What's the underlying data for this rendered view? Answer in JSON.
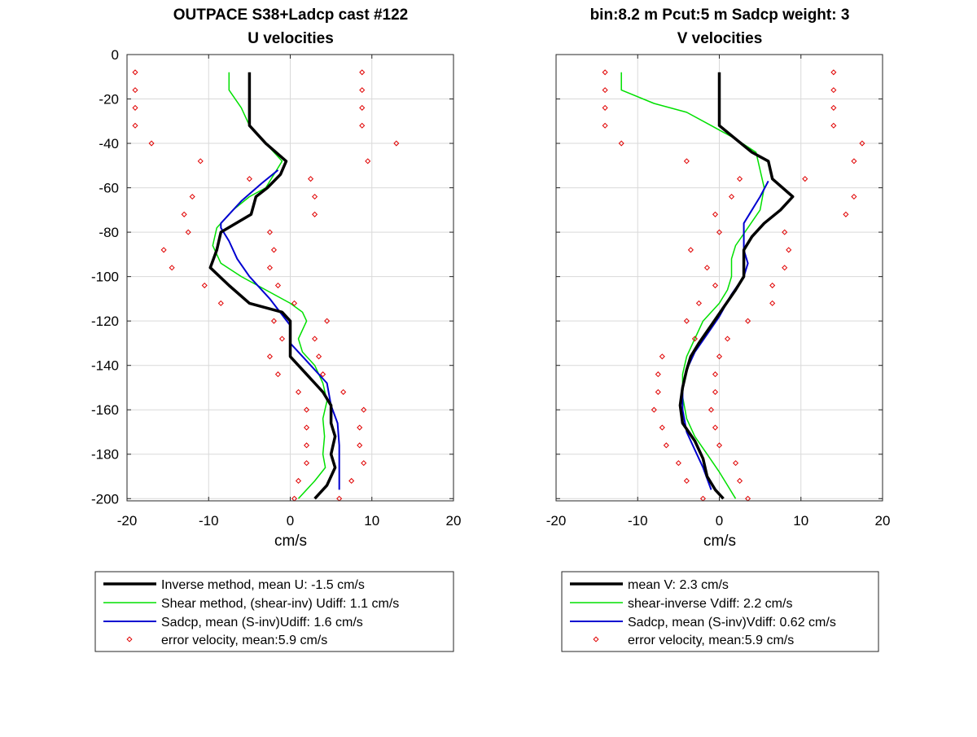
{
  "colors": {
    "inverse": "#000000",
    "shear": "#00e000",
    "sadcp": "#0000d0",
    "error": "#e00000",
    "grid": "#d9d9d9"
  },
  "chart_data": [
    {
      "type": "line",
      "title": "OUTPACE S38+Ladcp cast #122",
      "subtitle": "U velocities",
      "xlabel": "cm/s",
      "ylabel": "",
      "xlim": [
        -20,
        20
      ],
      "ylim": [
        -201,
        0
      ],
      "xticks": [
        "-20",
        "-10",
        "0",
        "10",
        "20"
      ],
      "yticks": [
        "0",
        "-20",
        "-40",
        "-60",
        "-80",
        "-100",
        "-120",
        "-140",
        "-160",
        "-180",
        "-200"
      ],
      "grid": true,
      "legend_placement": "below",
      "series": [
        {
          "name": "Inverse method, mean U:  -1.5 cm/s",
          "style": "line",
          "color_key": "inverse",
          "points": [
            [
              -5,
              -8
            ],
            [
              -5,
              -16
            ],
            [
              -5,
              -24
            ],
            [
              -5,
              -32
            ],
            [
              -3,
              -40
            ],
            [
              -0.5,
              -48
            ],
            [
              -1.2,
              -54
            ],
            [
              -2.8,
              -60
            ],
            [
              -4.2,
              -64
            ],
            [
              -4.8,
              -72
            ],
            [
              -8.5,
              -80
            ],
            [
              -9,
              -88
            ],
            [
              -9.8,
              -96
            ],
            [
              -7.5,
              -104
            ],
            [
              -5,
              -112
            ],
            [
              -1,
              -116
            ],
            [
              0,
              -120
            ],
            [
              0,
              -128
            ],
            [
              0,
              -136
            ],
            [
              1,
              -140
            ],
            [
              3,
              -148
            ],
            [
              4,
              -152
            ],
            [
              5,
              -158
            ],
            [
              5,
              -166
            ],
            [
              5.5,
              -172
            ],
            [
              5,
              -180
            ],
            [
              5.5,
              -186
            ],
            [
              4.5,
              -194
            ],
            [
              3,
              -200
            ]
          ]
        },
        {
          "name": "Shear method, (shear-inv)  Udiff:  1.1 cm/s",
          "style": "line",
          "color_key": "shear",
          "points": [
            [
              -7.5,
              -8
            ],
            [
              -7.5,
              -16
            ],
            [
              -6,
              -24
            ],
            [
              -5,
              -32
            ],
            [
              -3,
              -40
            ],
            [
              -1,
              -48
            ],
            [
              -2,
              -54
            ],
            [
              -3,
              -60
            ],
            [
              -5,
              -64
            ],
            [
              -7,
              -70
            ],
            [
              -9,
              -78
            ],
            [
              -9.5,
              -86
            ],
            [
              -8.5,
              -94
            ],
            [
              -6,
              -100
            ],
            [
              -3,
              -106
            ],
            [
              0,
              -112
            ],
            [
              1.5,
              -116
            ],
            [
              2,
              -120
            ],
            [
              1,
              -128
            ],
            [
              1.5,
              -134
            ],
            [
              3,
              -140
            ],
            [
              4,
              -148
            ],
            [
              4.5,
              -156
            ],
            [
              4,
              -164
            ],
            [
              4.2,
              -172
            ],
            [
              4,
              -180
            ],
            [
              4.3,
              -186
            ],
            [
              3,
              -192
            ],
            [
              1,
              -200
            ]
          ]
        },
        {
          "name": "Sadcp, mean (S-inv)Udiff: 1.6 cm/s",
          "style": "line",
          "color_key": "sadcp",
          "points": [
            [
              -1.5,
              -52
            ],
            [
              -3.5,
              -58
            ],
            [
              -6,
              -66
            ],
            [
              -8.5,
              -76
            ],
            [
              -8.5,
              -78
            ],
            [
              -7.5,
              -84
            ],
            [
              -6.5,
              -92
            ],
            [
              -5,
              -100
            ],
            [
              -2.5,
              -110
            ],
            [
              0,
              -122
            ],
            [
              0,
              -130
            ],
            [
              2,
              -138
            ],
            [
              4.5,
              -148
            ],
            [
              5,
              -158
            ],
            [
              5.8,
              -166
            ],
            [
              6,
              -176
            ],
            [
              6,
              -184
            ],
            [
              6,
              -196
            ]
          ]
        },
        {
          "name": "error velocity, mean:5.9 cm/s",
          "style": "markers",
          "color_key": "error",
          "points": [
            [
              -19,
              -8
            ],
            [
              8.8,
              -8
            ],
            [
              -19,
              -16
            ],
            [
              8.8,
              -16
            ],
            [
              -19,
              -24
            ],
            [
              8.8,
              -24
            ],
            [
              -19,
              -32
            ],
            [
              8.8,
              -32
            ],
            [
              -17,
              -40
            ],
            [
              13,
              -40
            ],
            [
              -11,
              -48
            ],
            [
              9.5,
              -48
            ],
            [
              -5,
              -56
            ],
            [
              2.5,
              -56
            ],
            [
              -12,
              -64
            ],
            [
              3,
              -64
            ],
            [
              -13,
              -72
            ],
            [
              3,
              -72
            ],
            [
              -12.5,
              -80
            ],
            [
              -2.5,
              -80
            ],
            [
              -15.5,
              -88
            ],
            [
              -2,
              -88
            ],
            [
              -14.5,
              -96
            ],
            [
              -2.5,
              -96
            ],
            [
              -10.5,
              -104
            ],
            [
              -1.5,
              -104
            ],
            [
              -8.5,
              -112
            ],
            [
              0.5,
              -112
            ],
            [
              -2,
              -120
            ],
            [
              4.5,
              -120
            ],
            [
              -1,
              -128
            ],
            [
              3,
              -128
            ],
            [
              -2.5,
              -136
            ],
            [
              3.5,
              -136
            ],
            [
              -1.5,
              -144
            ],
            [
              4,
              -144
            ],
            [
              1,
              -152
            ],
            [
              6.5,
              -152
            ],
            [
              2,
              -160
            ],
            [
              9,
              -160
            ],
            [
              2,
              -168
            ],
            [
              8.5,
              -168
            ],
            [
              2,
              -176
            ],
            [
              8.5,
              -176
            ],
            [
              2,
              -184
            ],
            [
              9,
              -184
            ],
            [
              1,
              -192
            ],
            [
              7.5,
              -192
            ],
            [
              0.5,
              -200
            ],
            [
              6,
              -200
            ]
          ]
        }
      ]
    },
    {
      "type": "line",
      "title": "bin:8.2 m  Pcut:5 m  Sadcp weight: 3",
      "subtitle": "V velocities",
      "xlabel": "cm/s",
      "ylabel": "",
      "xlim": [
        -20,
        20
      ],
      "ylim": [
        -201,
        0
      ],
      "xticks": [
        "-20",
        "-10",
        "0",
        "10",
        "20"
      ],
      "yticks": [],
      "grid": true,
      "legend_placement": "below",
      "series": [
        {
          "name": "mean V:  2.3 cm/s",
          "style": "line",
          "color_key": "inverse",
          "points": [
            [
              0,
              -8
            ],
            [
              0,
              -16
            ],
            [
              0,
              -24
            ],
            [
              0,
              -32
            ],
            [
              2,
              -38
            ],
            [
              4,
              -44
            ],
            [
              6,
              -48
            ],
            [
              6.5,
              -56
            ],
            [
              9,
              -64
            ],
            [
              7.5,
              -70
            ],
            [
              5.5,
              -76
            ],
            [
              4,
              -82
            ],
            [
              3,
              -88
            ],
            [
              3,
              -94
            ],
            [
              3,
              -100
            ],
            [
              2,
              -106
            ],
            [
              0.5,
              -114
            ],
            [
              -1,
              -122
            ],
            [
              -2.5,
              -130
            ],
            [
              -3.5,
              -136
            ],
            [
              -4,
              -142
            ],
            [
              -4.5,
              -150
            ],
            [
              -4.8,
              -158
            ],
            [
              -4.5,
              -166
            ],
            [
              -3,
              -174
            ],
            [
              -2,
              -182
            ],
            [
              -1.5,
              -190
            ],
            [
              -0.5,
              -196
            ],
            [
              0.5,
              -200
            ]
          ]
        },
        {
          "name": "shear-inverse Vdiff:  2.2 cm/s",
          "style": "line",
          "color_key": "shear",
          "points": [
            [
              -12,
              -8
            ],
            [
              -12,
              -16
            ],
            [
              -8,
              -22
            ],
            [
              -4,
              -26
            ],
            [
              -1,
              -32
            ],
            [
              2,
              -38
            ],
            [
              4.5,
              -44
            ],
            [
              5,
              -52
            ],
            [
              5.5,
              -60
            ],
            [
              5,
              -70
            ],
            [
              3.5,
              -78
            ],
            [
              2,
              -86
            ],
            [
              1.5,
              -92
            ],
            [
              1.5,
              -100
            ],
            [
              1,
              -106
            ],
            [
              0,
              -112
            ],
            [
              -2,
              -120
            ],
            [
              -3,
              -128
            ],
            [
              -4,
              -136
            ],
            [
              -4.5,
              -144
            ],
            [
              -4.5,
              -154
            ],
            [
              -4,
              -164
            ],
            [
              -3,
              -172
            ],
            [
              -1.5,
              -180
            ],
            [
              0,
              -188
            ],
            [
              1,
              -194
            ],
            [
              2,
              -200
            ]
          ]
        },
        {
          "name": "Sadcp, mean (S-inv)Vdiff: 0.62 cm/s",
          "style": "line",
          "color_key": "sadcp",
          "points": [
            [
              6,
              -57
            ],
            [
              5,
              -64
            ],
            [
              4,
              -70
            ],
            [
              3,
              -76
            ],
            [
              3,
              -84
            ],
            [
              3,
              -88
            ],
            [
              3.5,
              -94
            ],
            [
              3,
              -100
            ],
            [
              1.5,
              -108
            ],
            [
              0,
              -118
            ],
            [
              -1.5,
              -126
            ],
            [
              -3,
              -134
            ],
            [
              -4,
              -142
            ],
            [
              -4.5,
              -150
            ],
            [
              -4.5,
              -160
            ],
            [
              -4,
              -170
            ],
            [
              -3,
              -178
            ],
            [
              -2,
              -186
            ],
            [
              -1,
              -196
            ]
          ]
        }
      ],
      "error_series": {
        "name": "error velocity, mean:5.9 cm/s",
        "style": "markers",
        "color_key": "error",
        "points": [
          [
            -14,
            -8
          ],
          [
            14,
            -8
          ],
          [
            -14,
            -16
          ],
          [
            14,
            -16
          ],
          [
            -14,
            -24
          ],
          [
            14,
            -24
          ],
          [
            -14,
            -32
          ],
          [
            14,
            -32
          ],
          [
            -12,
            -40
          ],
          [
            17.5,
            -40
          ],
          [
            -4,
            -48
          ],
          [
            16.5,
            -48
          ],
          [
            2.5,
            -56
          ],
          [
            10.5,
            -56
          ],
          [
            1.5,
            -64
          ],
          [
            16.5,
            -64
          ],
          [
            -0.5,
            -72
          ],
          [
            15.5,
            -72
          ],
          [
            0,
            -80
          ],
          [
            8,
            -80
          ],
          [
            -3.5,
            -88
          ],
          [
            8.5,
            -88
          ],
          [
            -1.5,
            -96
          ],
          [
            8,
            -96
          ],
          [
            -0.5,
            -104
          ],
          [
            6.5,
            -104
          ],
          [
            -2.5,
            -112
          ],
          [
            6.5,
            -112
          ],
          [
            -4,
            -120
          ],
          [
            3.5,
            -120
          ],
          [
            -3,
            -128
          ],
          [
            1,
            -128
          ],
          [
            -7,
            -136
          ],
          [
            0,
            -136
          ],
          [
            -7.5,
            -144
          ],
          [
            -0.5,
            -144
          ],
          [
            -7.5,
            -152
          ],
          [
            -0.5,
            -152
          ],
          [
            -8,
            -160
          ],
          [
            -1,
            -160
          ],
          [
            -7,
            -168
          ],
          [
            -0.5,
            -168
          ],
          [
            -6.5,
            -176
          ],
          [
            0,
            -176
          ],
          [
            -5,
            -184
          ],
          [
            2,
            -184
          ],
          [
            -4,
            -192
          ],
          [
            2.5,
            -192
          ],
          [
            -2,
            -200
          ],
          [
            3.5,
            -200
          ]
        ]
      }
    }
  ]
}
